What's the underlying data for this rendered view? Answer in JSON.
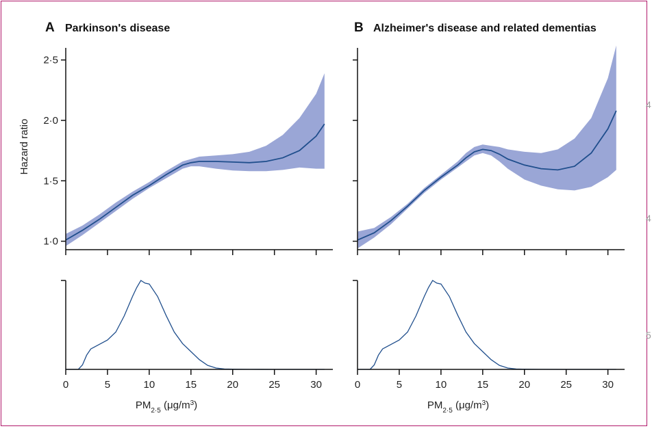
{
  "frame_color": "#b0186a",
  "margin_marks": [
    "4",
    "4",
    "5"
  ],
  "chart_data": [
    {
      "type": "line",
      "panel": "A",
      "title": "Parkinson's disease",
      "ylabel": "Hazard ratio",
      "xlabel": "PM2·5 (μg/m³)",
      "xlabel_main": "PM",
      "xlabel_sub": "2·5",
      "xlabel_unit": " (μg/m",
      "xlabel_sup": "3",
      "xlabel_close": ")",
      "xlim": [
        0,
        32
      ],
      "ylim": [
        0.93,
        2.6
      ],
      "x_ticks": [
        0,
        5,
        10,
        15,
        20,
        25,
        30
      ],
      "y_ticks": [
        "1·0",
        "1·5",
        "2·0",
        "2·5"
      ],
      "y_tick_values": [
        1.0,
        1.5,
        2.0,
        2.5
      ],
      "line_color": "#1f4e8c",
      "band_color": "#9aa6d6",
      "x": [
        0,
        2,
        4,
        6,
        8,
        10,
        12,
        14,
        15,
        16,
        18,
        20,
        22,
        24,
        26,
        28,
        30,
        31
      ],
      "hr": [
        1.01,
        1.09,
        1.18,
        1.28,
        1.38,
        1.46,
        1.55,
        1.63,
        1.65,
        1.66,
        1.66,
        1.655,
        1.65,
        1.66,
        1.69,
        1.75,
        1.87,
        1.97
      ],
      "lower": [
        0.96,
        1.05,
        1.15,
        1.25,
        1.35,
        1.44,
        1.52,
        1.6,
        1.62,
        1.62,
        1.6,
        1.585,
        1.58,
        1.58,
        1.59,
        1.61,
        1.6,
        1.6
      ],
      "upper": [
        1.06,
        1.13,
        1.22,
        1.32,
        1.41,
        1.49,
        1.58,
        1.66,
        1.68,
        1.7,
        1.71,
        1.72,
        1.74,
        1.79,
        1.88,
        2.02,
        2.22,
        2.39
      ],
      "exposure_distribution": {
        "x": [
          0,
          1.5,
          2,
          2.5,
          3,
          4,
          5,
          6,
          7,
          8,
          8.5,
          9,
          9.5,
          10,
          11,
          12,
          13,
          14,
          15,
          16,
          17,
          18,
          19,
          20,
          22,
          25,
          28,
          30,
          31
        ],
        "density": [
          0,
          0,
          0.05,
          0.16,
          0.23,
          0.28,
          0.33,
          0.42,
          0.6,
          0.82,
          0.92,
          1.0,
          0.97,
          0.96,
          0.82,
          0.61,
          0.42,
          0.29,
          0.2,
          0.11,
          0.045,
          0.015,
          0.005,
          0.002,
          0.001,
          0.0,
          0.0,
          0.0,
          0.0
        ]
      }
    },
    {
      "type": "line",
      "panel": "B",
      "title": "Alzheimer's disease and related dementias",
      "ylabel": "",
      "xlabel": "PM2·5 (μg/m³)",
      "xlabel_main": "PM",
      "xlabel_sub": "2·5",
      "xlabel_unit": " (μg/m",
      "xlabel_sup": "3",
      "xlabel_close": ")",
      "xlim": [
        0,
        32
      ],
      "ylim": [
        0.93,
        2.6
      ],
      "x_ticks": [
        0,
        5,
        10,
        15,
        20,
        25,
        30
      ],
      "y_ticks": [],
      "y_tick_values": [
        1.0,
        1.5,
        2.0,
        2.5
      ],
      "line_color": "#1f4e8c",
      "band_color": "#9aa6d6",
      "x": [
        0,
        2,
        4,
        6,
        8,
        10,
        12,
        13,
        14,
        15,
        16,
        17,
        18,
        20,
        22,
        24,
        26,
        28,
        30,
        31
      ],
      "hr": [
        1.01,
        1.07,
        1.17,
        1.29,
        1.42,
        1.53,
        1.63,
        1.69,
        1.74,
        1.76,
        1.75,
        1.72,
        1.68,
        1.63,
        1.6,
        1.59,
        1.62,
        1.73,
        1.93,
        2.08
      ],
      "lower": [
        0.94,
        1.03,
        1.14,
        1.27,
        1.4,
        1.51,
        1.61,
        1.66,
        1.71,
        1.73,
        1.71,
        1.66,
        1.6,
        1.51,
        1.46,
        1.43,
        1.42,
        1.45,
        1.53,
        1.59
      ],
      "upper": [
        1.08,
        1.11,
        1.2,
        1.31,
        1.44,
        1.55,
        1.66,
        1.73,
        1.78,
        1.8,
        1.79,
        1.78,
        1.76,
        1.74,
        1.73,
        1.76,
        1.85,
        2.02,
        2.35,
        2.62
      ],
      "exposure_distribution": {
        "x": [
          0,
          1.5,
          2,
          2.5,
          3,
          4,
          5,
          6,
          7,
          8,
          8.5,
          9,
          9.5,
          10,
          11,
          12,
          13,
          14,
          15,
          16,
          17,
          18,
          19,
          20,
          22,
          25,
          28,
          30,
          31
        ],
        "density": [
          0,
          0,
          0.05,
          0.16,
          0.23,
          0.28,
          0.33,
          0.42,
          0.6,
          0.82,
          0.92,
          1.0,
          0.97,
          0.96,
          0.82,
          0.61,
          0.42,
          0.29,
          0.2,
          0.11,
          0.045,
          0.015,
          0.005,
          0.002,
          0.001,
          0.0,
          0.0,
          0.0,
          0.0
        ]
      }
    }
  ]
}
